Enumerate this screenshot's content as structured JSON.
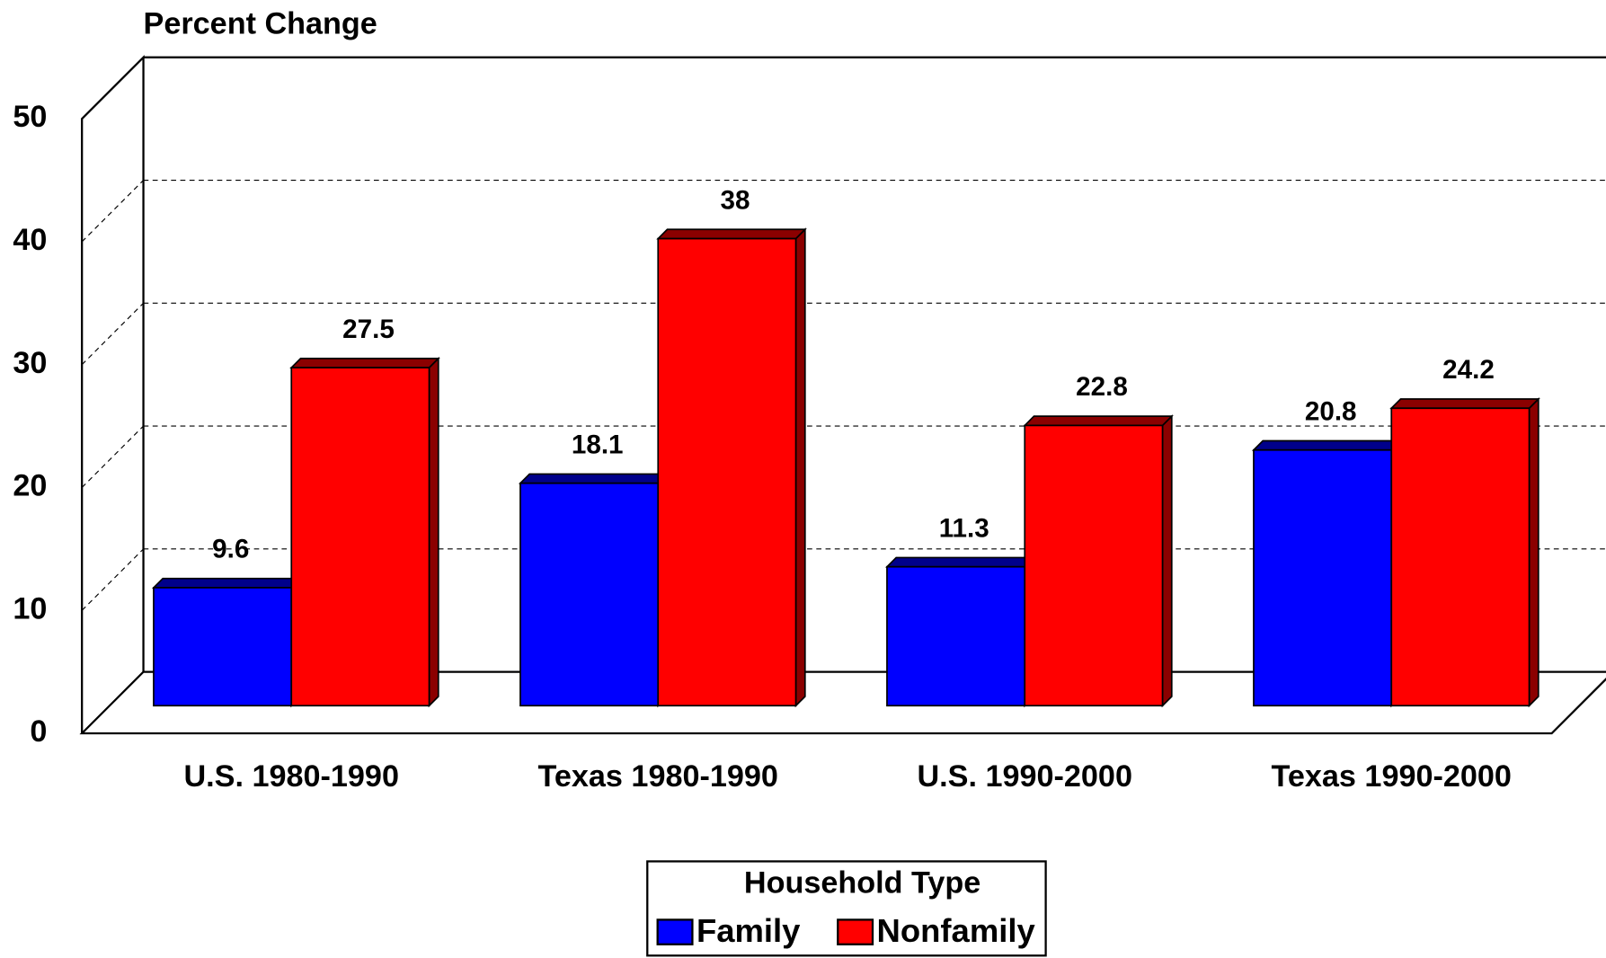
{
  "chart_data": {
    "type": "bar3d",
    "y_label": "Percent Change",
    "categories": [
      "U.S. 1980-1990",
      "Texas 1980-1990",
      "U.S. 1990-2000",
      "Texas 1990-2000"
    ],
    "series": [
      {
        "name": "Family",
        "color": "#0000ff",
        "values": [
          9.6,
          18.1,
          11.3,
          20.8
        ]
      },
      {
        "name": "Nonfamily",
        "color": "#ff0000",
        "values": [
          27.5,
          38,
          22.8,
          24.2
        ]
      }
    ],
    "ylim": [
      0,
      50
    ],
    "yticks": [
      0,
      10,
      20,
      30,
      40,
      50
    ],
    "grid": true,
    "legend": {
      "title": "Household Type",
      "position": "bottom"
    }
  }
}
